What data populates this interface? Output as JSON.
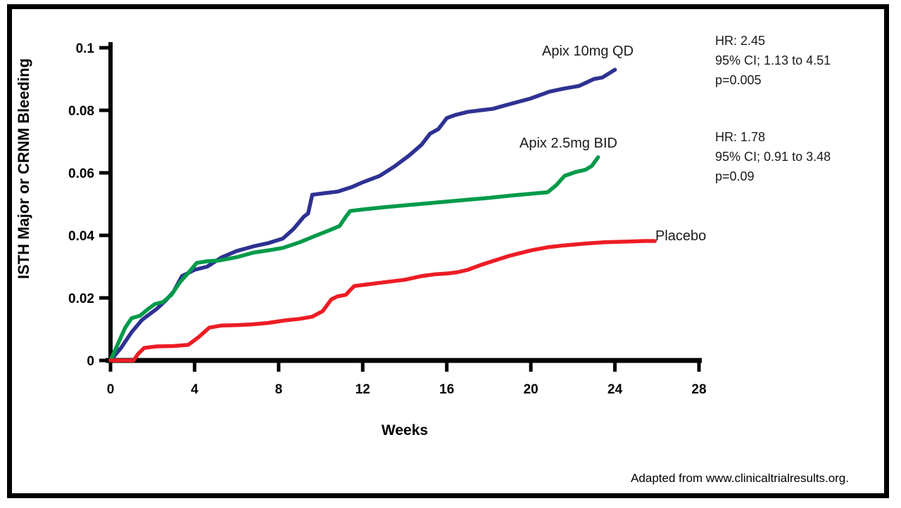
{
  "figure": {
    "attribution": "Adapted from www.clinicaltrialresults.org."
  },
  "chart_data": {
    "type": "line",
    "title": "",
    "xlabel": "Weeks",
    "ylabel": "ISTH Major or CRNM Bleeding",
    "xlim": [
      0,
      28
    ],
    "ylim": [
      0,
      0.1
    ],
    "xticks": [
      0,
      4,
      8,
      12,
      16,
      20,
      24,
      28
    ],
    "xtick_labels": [
      "0",
      "4",
      "8",
      "12",
      "16",
      "20",
      "24",
      "28"
    ],
    "yticks": [
      0,
      0.02,
      0.04,
      0.06,
      0.08,
      0.1
    ],
    "ytick_labels": [
      "0",
      "0.02",
      "0.04",
      "0.06",
      "0.08",
      "0.1"
    ],
    "grid": false,
    "legend_position": "inline-labels",
    "axis_color": "#000000",
    "series": [
      {
        "name": "Apix 10mg QD",
        "color": "#2e3192",
        "x": [
          0,
          0.5,
          1,
          1.5,
          1.8,
          2.2,
          2.6,
          3,
          3.4,
          4,
          4.6,
          5.3,
          6,
          6.8,
          7.5,
          8.2,
          8.7,
          9.2,
          9.4,
          9.6,
          10.2,
          10.8,
          11.5,
          12,
          12.8,
          13.5,
          14.2,
          14.8,
          15.2,
          15.6,
          16,
          16.4,
          17,
          17.6,
          18.2,
          19,
          20,
          20.9,
          21.6,
          22.3,
          23,
          23.4,
          24
        ],
        "y": [
          0,
          0.004,
          0.009,
          0.013,
          0.0145,
          0.0165,
          0.019,
          0.022,
          0.027,
          0.029,
          0.03,
          0.033,
          0.035,
          0.0365,
          0.0375,
          0.039,
          0.042,
          0.046,
          0.047,
          0.053,
          0.0535,
          0.054,
          0.0555,
          0.057,
          0.059,
          0.062,
          0.0655,
          0.069,
          0.0725,
          0.074,
          0.0775,
          0.0785,
          0.0795,
          0.08,
          0.0805,
          0.082,
          0.0838,
          0.086,
          0.087,
          0.0878,
          0.09,
          0.0905,
          0.093
        ]
      },
      {
        "name": "Apix 2.5mg BID",
        "color": "#009a49",
        "x": [
          0,
          0.4,
          0.7,
          1.0,
          1.4,
          1.8,
          2.1,
          2.5,
          2.9,
          3.3,
          3.7,
          4.1,
          4.6,
          5.2,
          6,
          6.8,
          7.5,
          8.2,
          9,
          9.8,
          10.4,
          10.9,
          11.2,
          11.4,
          12,
          13,
          14,
          15,
          16,
          17,
          18,
          19,
          20,
          20.8,
          21.2,
          21.6,
          22.1,
          22.6,
          22.9,
          23.2
        ],
        "y": [
          0,
          0.006,
          0.0105,
          0.0135,
          0.0143,
          0.0165,
          0.018,
          0.0187,
          0.021,
          0.025,
          0.028,
          0.0312,
          0.0317,
          0.032,
          0.033,
          0.0345,
          0.0352,
          0.036,
          0.0378,
          0.04,
          0.0416,
          0.043,
          0.046,
          0.0478,
          0.0483,
          0.049,
          0.0496,
          0.0502,
          0.0508,
          0.0514,
          0.052,
          0.0527,
          0.0533,
          0.0538,
          0.056,
          0.059,
          0.0602,
          0.061,
          0.0622,
          0.065
        ]
      },
      {
        "name": "Placebo",
        "color": "#ed1c24",
        "x": [
          0,
          1.1,
          1.3,
          1.6,
          2.2,
          3,
          3.7,
          4.2,
          4.7,
          5.3,
          6,
          6.7,
          7.5,
          8.3,
          9,
          9.6,
          10.1,
          10.5,
          10.8,
          11.2,
          11.4,
          11.6,
          12.2,
          13,
          14,
          14.8,
          15.5,
          16,
          16.5,
          17,
          17.6,
          18.2,
          19,
          20,
          20.8,
          21.6,
          22.6,
          23.5,
          24.5,
          25.4,
          25.9
        ],
        "y": [
          0,
          0,
          0.002,
          0.004,
          0.0045,
          0.0046,
          0.005,
          0.0075,
          0.0105,
          0.0112,
          0.0113,
          0.0115,
          0.012,
          0.0128,
          0.0133,
          0.014,
          0.0158,
          0.0195,
          0.0205,
          0.021,
          0.0225,
          0.0238,
          0.0243,
          0.025,
          0.0258,
          0.027,
          0.0276,
          0.0278,
          0.0282,
          0.029,
          0.0305,
          0.0318,
          0.0335,
          0.0352,
          0.0362,
          0.0368,
          0.0374,
          0.0378,
          0.038,
          0.0382,
          0.0382
        ]
      }
    ],
    "annotations": [
      {
        "for_series": "Apix 10mg QD",
        "lines": [
          "HR: 2.45",
          "95% CI; 1.13 to 4.51",
          "p=0.005"
        ]
      },
      {
        "for_series": "Apix 2.5mg BID",
        "lines": [
          "HR: 1.78",
          "95% CI; 0.91 to 3.48",
          "p=0.09"
        ]
      }
    ]
  }
}
